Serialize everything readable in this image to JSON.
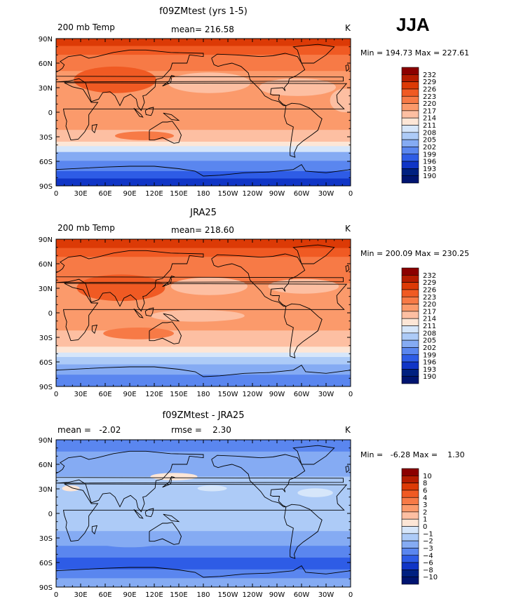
{
  "season": "JJA",
  "panels": [
    {
      "title": "f09ZMtest (yrs 1-5)",
      "left_label": "200 mb Temp",
      "center_label": "mean= 216.58",
      "right_label": "K",
      "minmax": "Min = 194.73 Max = 227.61",
      "colorbar_labels": [
        "232",
        "229",
        "226",
        "223",
        "220",
        "217",
        "214",
        "211",
        "208",
        "205",
        "202",
        "199",
        "196",
        "193",
        "190"
      ]
    },
    {
      "title": "JRA25",
      "left_label": "200 mb Temp",
      "center_label": "mean= 218.60",
      "right_label": "K",
      "minmax": "Min = 200.09 Max = 230.25",
      "colorbar_labels": [
        "232",
        "229",
        "226",
        "223",
        "220",
        "217",
        "214",
        "211",
        "208",
        "205",
        "202",
        "199",
        "196",
        "193",
        "190"
      ]
    },
    {
      "title": "f09ZMtest - JRA25",
      "left_label": "mean =   -2.02",
      "center_label": "rmse =    2.30",
      "right_label": "K",
      "minmax": "Min =   -6.28 Max =    1.30",
      "colorbar_labels": [
        "10",
        "8",
        "6",
        "4",
        "3",
        "2",
        "1",
        "0",
        "−1",
        "−2",
        "−3",
        "−4",
        "−6",
        "−8",
        "−10"
      ]
    }
  ],
  "chart_data": {
    "type": "heatmap",
    "x_ticks": [
      "0",
      "30E",
      "60E",
      "90E",
      "120E",
      "150E",
      "180",
      "150W",
      "120W",
      "90W",
      "60W",
      "30W",
      "0"
    ],
    "y_ticks": [
      "90N",
      "60N",
      "30N",
      "0",
      "30S",
      "60S",
      "90S"
    ],
    "xlim": [
      0,
      360
    ],
    "ylim": [
      -90,
      90
    ],
    "colors_abs": [
      "#8b0000",
      "#b51c00",
      "#dc3a06",
      "#f05a23",
      "#f77a46",
      "#fb9a6b",
      "#fdbfa2",
      "#fde6d6",
      "#d6e6fa",
      "#adcbf7",
      "#85abf3",
      "#5a86ef",
      "#2e5ce6",
      "#1035c6",
      "#002080",
      "#001470"
    ],
    "colors_diff": [
      "#8b0000",
      "#b51c00",
      "#dc3a06",
      "#f05a23",
      "#f77a46",
      "#fb9a6b",
      "#fdbfa2",
      "#fde6d6",
      "#d6e6fa",
      "#adcbf7",
      "#85abf3",
      "#5a86ef",
      "#2e5ce6",
      "#1035c6",
      "#002080",
      "#001470"
    ]
  }
}
